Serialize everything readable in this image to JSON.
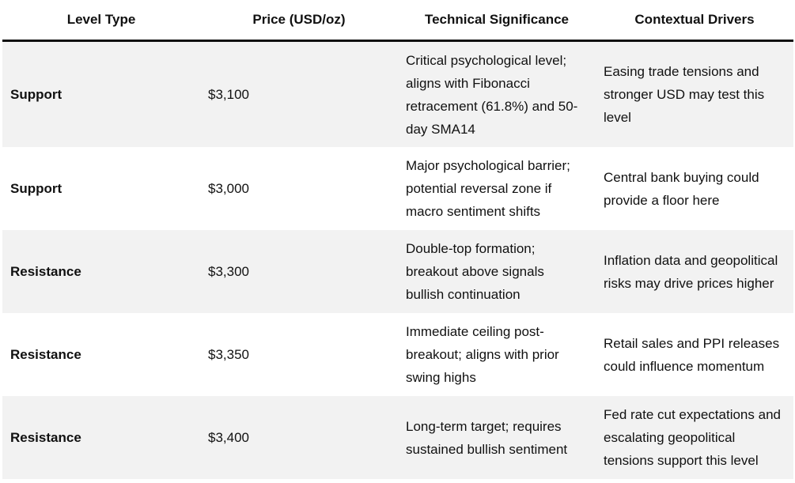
{
  "table": {
    "header": [
      "Level Type",
      "Price (USD/oz)",
      "Technical Significance",
      "Contextual Drivers"
    ],
    "rows": [
      [
        "Support",
        "$3,100",
        "Critical psychological level; aligns with Fibonacci retracement (61.8%) and 50-day SMA14",
        "Easing trade tensions and stronger USD may test this level"
      ],
      [
        "Support",
        "$3,000",
        "Major psychological barrier; potential reversal zone if macro sentiment shifts",
        "Central bank buying could provide a floor here"
      ],
      [
        "Resistance",
        "$3,300",
        "Double-top formation; breakout above signals bullish continuation",
        "Inflation data and geopolitical risks may drive prices higher"
      ],
      [
        "Resistance",
        "$3,350",
        "Immediate ceiling post-breakout; aligns with prior swing highs",
        "Retail sales and PPI releases could influence momentum"
      ],
      [
        "Resistance",
        "$3,400",
        "Long-term target; requires sustained bullish sentiment",
        "Fed rate cut expectations and escalating geopolitical tensions support this level"
      ]
    ]
  }
}
